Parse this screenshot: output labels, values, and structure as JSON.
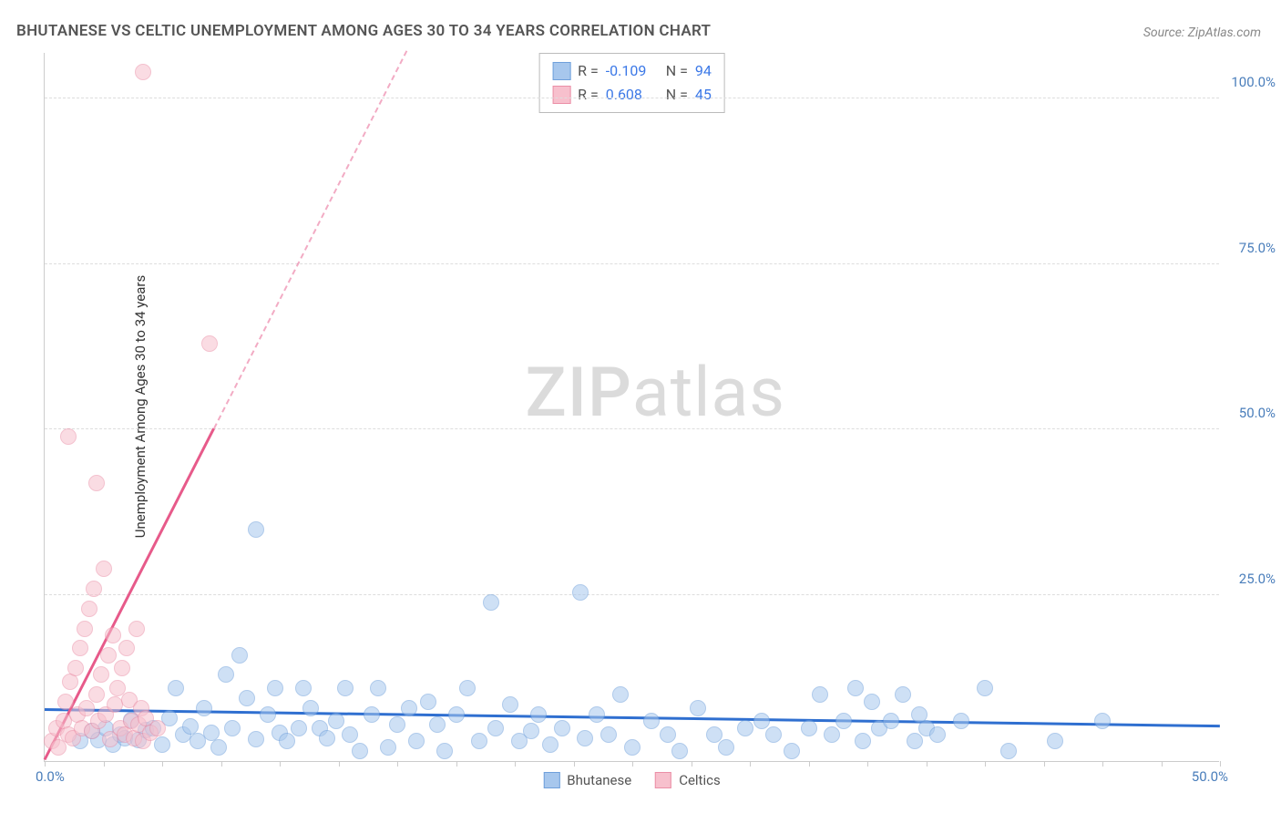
{
  "title": "BHUTANESE VS CELTIC UNEMPLOYMENT AMONG AGES 30 TO 34 YEARS CORRELATION CHART",
  "source": "Source: ZipAtlas.com",
  "y_axis_label": "Unemployment Among Ages 30 to 34 years",
  "watermark_zip": "ZIP",
  "watermark_atlas": "atlas",
  "chart": {
    "type": "scatter",
    "xlim": [
      0,
      50
    ],
    "ylim": [
      0,
      107
    ],
    "x_ticks": [
      0,
      2.5,
      5,
      7.5,
      10,
      12.5,
      15,
      17.5,
      20,
      22.5,
      25,
      27.5,
      30,
      32.5,
      35,
      37.5,
      40,
      42.5,
      45,
      47.5,
      50
    ],
    "y_gridlines": [
      25,
      50,
      75,
      100
    ],
    "y_tick_labels": [
      "25.0%",
      "50.0%",
      "75.0%",
      "100.0%"
    ],
    "x_origin_label": "0.0%",
    "x_max_label": "50.0%",
    "background_color": "#ffffff",
    "grid_color": "#dddddd",
    "axis_color": "#cccccc",
    "tick_label_color": "#4a7ebb",
    "point_radius": 9,
    "point_opacity": 0.55,
    "series": [
      {
        "name": "Bhutanese",
        "color_fill": "#a7c7ed",
        "color_stroke": "#6fa0db",
        "R": "-0.109",
        "N": "94",
        "trend": {
          "x1": 0,
          "y1": 7.5,
          "x2": 50,
          "y2": 5.0,
          "color": "#2f6fd0",
          "width": 3,
          "dashed_extension": false
        },
        "points": [
          [
            1.5,
            3
          ],
          [
            2,
            4.5
          ],
          [
            2.3,
            3.2
          ],
          [
            2.6,
            5
          ],
          [
            2.9,
            2.5
          ],
          [
            3.2,
            4
          ],
          [
            3.4,
            3.5
          ],
          [
            3.7,
            6.2
          ],
          [
            4,
            3.1
          ],
          [
            4.3,
            4.7
          ],
          [
            4.6,
            5
          ],
          [
            5,
            2.5
          ],
          [
            5.3,
            6.5
          ],
          [
            5.6,
            11
          ],
          [
            5.9,
            4
          ],
          [
            6.2,
            5.2
          ],
          [
            6.5,
            3
          ],
          [
            6.8,
            8
          ],
          [
            7.1,
            4.2
          ],
          [
            7.4,
            2
          ],
          [
            7.7,
            13
          ],
          [
            8,
            5
          ],
          [
            8.3,
            16
          ],
          [
            8.6,
            9.5
          ],
          [
            9,
            35
          ],
          [
            9,
            3.3
          ],
          [
            9.5,
            7
          ],
          [
            9.8,
            11
          ],
          [
            10,
            4.2
          ],
          [
            10.3,
            3
          ],
          [
            10.8,
            5
          ],
          [
            11,
            11
          ],
          [
            11.3,
            8
          ],
          [
            11.7,
            5
          ],
          [
            12,
            3.5
          ],
          [
            12.4,
            6
          ],
          [
            12.8,
            11
          ],
          [
            13,
            4
          ],
          [
            13.4,
            1.5
          ],
          [
            13.9,
            7
          ],
          [
            14.2,
            11
          ],
          [
            14.6,
            2
          ],
          [
            15,
            5.5
          ],
          [
            15.5,
            8
          ],
          [
            15.8,
            3
          ],
          [
            16.3,
            9
          ],
          [
            16.7,
            5.5
          ],
          [
            17,
            1.5
          ],
          [
            17.5,
            7
          ],
          [
            18,
            11
          ],
          [
            18.5,
            3
          ],
          [
            19,
            24
          ],
          [
            19.2,
            5
          ],
          [
            19.8,
            8.5
          ],
          [
            20.2,
            3
          ],
          [
            20.7,
            4.5
          ],
          [
            21,
            7
          ],
          [
            21.5,
            2.5
          ],
          [
            22,
            5
          ],
          [
            22.8,
            25.5
          ],
          [
            23,
            3.5
          ],
          [
            23.5,
            7
          ],
          [
            24,
            4
          ],
          [
            24.5,
            10
          ],
          [
            25,
            2
          ],
          [
            25.8,
            6
          ],
          [
            26.5,
            4
          ],
          [
            27,
            1.5
          ],
          [
            27.8,
            8
          ],
          [
            28.5,
            4
          ],
          [
            29,
            2
          ],
          [
            29.8,
            5
          ],
          [
            30.5,
            6
          ],
          [
            31,
            4
          ],
          [
            31.8,
            1.5
          ],
          [
            32.5,
            5
          ],
          [
            33,
            10
          ],
          [
            33.5,
            4
          ],
          [
            34,
            6
          ],
          [
            34.5,
            11
          ],
          [
            34.8,
            3
          ],
          [
            35.2,
            9
          ],
          [
            35.5,
            5
          ],
          [
            36,
            6
          ],
          [
            36.5,
            10
          ],
          [
            37,
            3
          ],
          [
            37.2,
            7
          ],
          [
            37.5,
            5
          ],
          [
            38,
            4
          ],
          [
            39,
            6
          ],
          [
            40,
            11
          ],
          [
            41,
            1.5
          ],
          [
            43,
            3
          ],
          [
            45,
            6
          ]
        ]
      },
      {
        "name": "Celtics",
        "color_fill": "#f7c0cd",
        "color_stroke": "#eb8fa7",
        "R": "0.608",
        "N": "45",
        "trend": {
          "x1": 0,
          "y1": 0,
          "x2": 7.2,
          "y2": 50,
          "color": "#e75a8a",
          "width": 3,
          "dashed_extension": true,
          "dash_x2": 15.4,
          "dash_y2": 107
        },
        "points": [
          [
            0.3,
            3
          ],
          [
            0.5,
            5
          ],
          [
            0.6,
            2
          ],
          [
            0.8,
            6
          ],
          [
            0.9,
            9
          ],
          [
            1.0,
            4
          ],
          [
            1.1,
            12
          ],
          [
            1.2,
            3.5
          ],
          [
            1.3,
            14
          ],
          [
            1.4,
            7
          ],
          [
            1.5,
            17
          ],
          [
            1.6,
            5
          ],
          [
            1.7,
            20
          ],
          [
            1.8,
            8
          ],
          [
            1.9,
            23
          ],
          [
            2.0,
            4.5
          ],
          [
            2.1,
            26
          ],
          [
            2.2,
            10
          ],
          [
            2.3,
            6
          ],
          [
            2.4,
            13
          ],
          [
            2.5,
            29
          ],
          [
            2.6,
            7
          ],
          [
            2.7,
            16
          ],
          [
            1.0,
            49
          ],
          [
            2.8,
            3.3
          ],
          [
            2.9,
            19
          ],
          [
            3.0,
            8.5
          ],
          [
            3.1,
            11
          ],
          [
            3.2,
            5
          ],
          [
            2.2,
            42
          ],
          [
            3.3,
            14
          ],
          [
            3.4,
            4
          ],
          [
            3.5,
            17
          ],
          [
            3.6,
            9.2
          ],
          [
            3.7,
            6
          ],
          [
            3.8,
            3.5
          ],
          [
            3.9,
            20
          ],
          [
            4.0,
            5.5
          ],
          [
            4.1,
            8
          ],
          [
            4.2,
            3
          ],
          [
            4.3,
            6.5
          ],
          [
            4.5,
            4.2
          ],
          [
            4.8,
            5
          ],
          [
            4.2,
            104
          ],
          [
            7.0,
            63
          ]
        ]
      }
    ]
  },
  "legend_top": {
    "rows": [
      {
        "swatch_fill": "#a7c7ed",
        "swatch_stroke": "#6fa0db",
        "r_label": "R =",
        "r_val": "-0.109",
        "n_label": "N =",
        "n_val": "94"
      },
      {
        "swatch_fill": "#f7c0cd",
        "swatch_stroke": "#eb8fa7",
        "r_label": "R =",
        "r_val": "0.608",
        "n_label": "N =",
        "n_val": "45"
      }
    ]
  },
  "legend_bottom": {
    "items": [
      {
        "swatch_fill": "#a7c7ed",
        "swatch_stroke": "#6fa0db",
        "label": "Bhutanese"
      },
      {
        "swatch_fill": "#f7c0cd",
        "swatch_stroke": "#eb8fa7",
        "label": "Celtics"
      }
    ]
  }
}
